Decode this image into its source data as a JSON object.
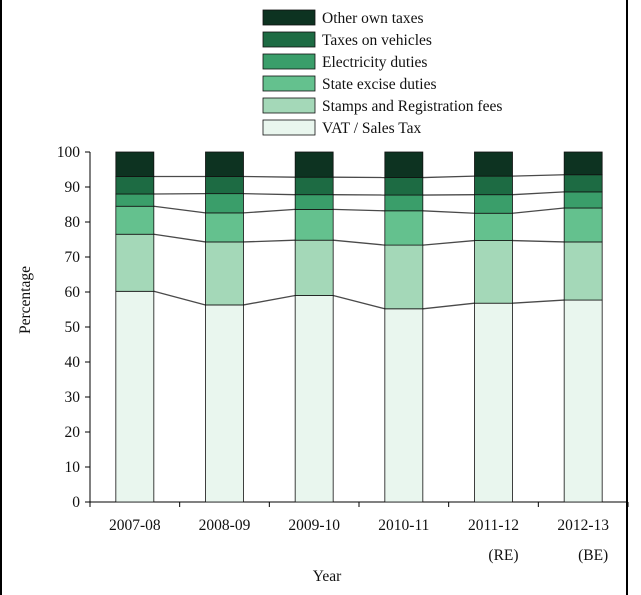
{
  "chart_data": {
    "type": "bar",
    "stacked": true,
    "xlabel": "Year",
    "ylabel": "Percentage",
    "ylim": [
      0,
      100
    ],
    "yticks": [
      0,
      10,
      20,
      30,
      40,
      50,
      60,
      70,
      80,
      90,
      100
    ],
    "categories": [
      {
        "label": "2007-08",
        "sublabel": ""
      },
      {
        "label": "2008-09",
        "sublabel": ""
      },
      {
        "label": "2009-10",
        "sublabel": ""
      },
      {
        "label": "2010-11",
        "sublabel": ""
      },
      {
        "label": "2011-12",
        "sublabel": "(RE)"
      },
      {
        "label": "2012-13",
        "sublabel": "(BE)"
      }
    ],
    "series": [
      {
        "name": "VAT / Sales Tax",
        "color": "#e9f6ee",
        "values": [
          60.2,
          56.3,
          59.0,
          55.2,
          56.8,
          57.7
        ]
      },
      {
        "name": "Stamps and Registration fees",
        "color": "#a4d8b8",
        "values": [
          16.3,
          18.0,
          15.8,
          18.2,
          17.9,
          16.6
        ]
      },
      {
        "name": "State excise duties",
        "color": "#64c18e",
        "values": [
          8.0,
          8.3,
          8.8,
          9.8,
          7.8,
          9.7
        ]
      },
      {
        "name": "Electricity duties",
        "color": "#3a9e6a",
        "values": [
          3.5,
          5.5,
          4.2,
          4.5,
          5.3,
          4.6
        ]
      },
      {
        "name": "Taxes on vehicles",
        "color": "#1d6b43",
        "values": [
          5.0,
          4.9,
          5.0,
          5.0,
          5.3,
          4.9
        ]
      },
      {
        "name": "Other own taxes",
        "color": "#0d3321",
        "values": [
          7.0,
          7.0,
          7.2,
          7.3,
          6.9,
          6.5
        ]
      }
    ],
    "legend_position": "top"
  }
}
